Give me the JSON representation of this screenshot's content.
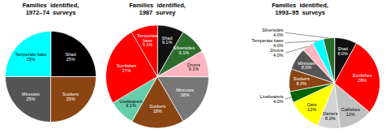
{
  "chart_data": [
    {
      "type": "pie",
      "title": "Families  identified,\n1972–74  surveys",
      "categories": [
        "Shad",
        "Suckers",
        "Minnows",
        "Temperate bass"
      ],
      "values": [
        25,
        25,
        25,
        25
      ],
      "value_labels": [
        "25%",
        "25%",
        "25%",
        "25%"
      ],
      "colors": [
        "#000000",
        "#8B4513",
        "#555555",
        "#00FFFF"
      ],
      "data_labels": true
    },
    {
      "type": "pie",
      "title": "Families  identified,\n1987  survey",
      "categories": [
        "Shad",
        "Silversides",
        "Drums",
        "Minnows",
        "Suckers",
        "Livebearers",
        "Sunfishes",
        "Temperate\nbass"
      ],
      "values": [
        9.1,
        9.1,
        9.1,
        18.0,
        18.0,
        9.1,
        27.3,
        9.1
      ],
      "value_labels": [
        "9.1%",
        "9.1%",
        "9.1%",
        "18%",
        "18%",
        "9.1%",
        "27%",
        "9.1%"
      ],
      "colors": [
        "#111111",
        "#2d6e2d",
        "#ffb6c1",
        "#777777",
        "#8B4513",
        "#66CDAA",
        "#FF0000",
        "#FF0000"
      ],
      "data_labels": true
    },
    {
      "type": "pie",
      "title": "Families  identified,\n1993–95  surveys",
      "categories": [
        "Shad",
        "Sunfishes",
        "Catfishes",
        "Darters",
        "Gars",
        "Livebearers",
        "Suckers",
        "Minnows",
        "Drums",
        "Temperate bass",
        "Silversides"
      ],
      "values": [
        8.0,
        28.0,
        12.0,
        8.0,
        12.0,
        4.0,
        8.0,
        8.0,
        4.0,
        4.0,
        4.0
      ],
      "value_labels": [
        "8.0%",
        "28%",
        "12%",
        "8.0%",
        "12%",
        "4.0%",
        "8.0%",
        "8.0%",
        "4.0%",
        "4.0%",
        "4.0%"
      ],
      "colors": [
        "#111111",
        "#FF0000",
        "#C0C0C0",
        "#D3D3D3",
        "#FFFF00",
        "#006400",
        "#8B4513",
        "#555555",
        "#ffb6c1",
        "#00FFFF",
        "#2d6e2d"
      ],
      "data_labels": true
    }
  ]
}
